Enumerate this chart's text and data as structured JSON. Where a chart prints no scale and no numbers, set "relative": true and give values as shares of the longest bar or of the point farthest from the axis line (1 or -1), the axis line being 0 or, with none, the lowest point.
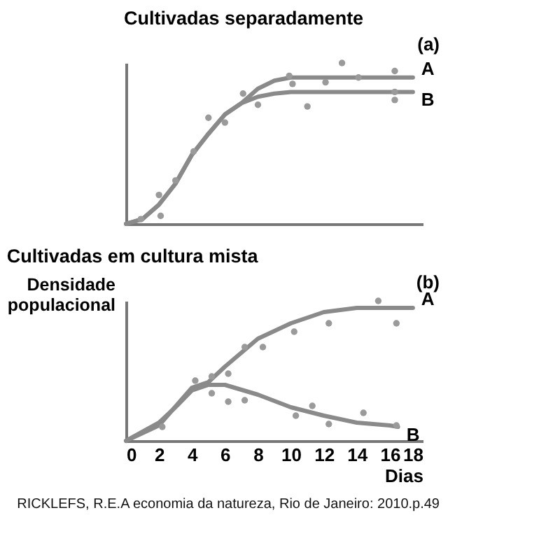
{
  "chart_data": [
    {
      "type": "line",
      "title": "Cultivadas separadamente",
      "annotations": [
        "(a)"
      ],
      "relative": true,
      "xlim": [
        0,
        18
      ],
      "tick_labels": false,
      "series": [
        {
          "name": "A",
          "color": "#8a8a8a",
          "x": [
            0,
            1,
            2,
            3,
            4,
            5,
            6,
            7,
            8,
            9,
            10,
            12,
            14,
            17.4
          ],
          "values": [
            0,
            0.03,
            0.12,
            0.25,
            0.43,
            0.56,
            0.68,
            0.75,
            0.84,
            0.89,
            0.91,
            0.91,
            0.91,
            0.91
          ]
        },
        {
          "name": "B",
          "color": "#8a8a8a",
          "x": [
            0,
            1,
            2,
            3,
            4,
            5,
            6,
            7,
            8,
            9,
            10,
            12,
            14,
            17.4
          ],
          "values": [
            0,
            0.03,
            0.12,
            0.25,
            0.43,
            0.56,
            0.68,
            0.75,
            0.79,
            0.81,
            0.82,
            0.82,
            0.82,
            0.82
          ]
        },
        {
          "type": "scatter",
          "marker": "circle",
          "color": "#9a9a9a",
          "x": [
            0.9,
            2,
            2.1,
            3,
            4.1,
            5,
            6,
            7.1,
            8,
            9.9,
            10.1,
            11,
            12.1,
            13.1,
            14.1,
            16.3,
            16.3,
            16.3
          ],
          "values": [
            0.03,
            0.18,
            0.05,
            0.27,
            0.45,
            0.66,
            0.63,
            0.81,
            0.74,
            0.92,
            0.87,
            0.73,
            0.88,
            1,
            0.91,
            0.82,
            0.95,
            0.77
          ]
        }
      ]
    },
    {
      "type": "line",
      "title": "Cultivadas em cultura mista",
      "ylabel": "Densidade populacional",
      "xlabel": "Dias",
      "annotations": [
        "(b)",
        "RICKLEFS, R.E.A economia da natureza, Rio de Janeiro: 2010.p.49"
      ],
      "relative": true,
      "xlim": [
        0,
        18
      ],
      "xticks": [
        0,
        2,
        4,
        6,
        8,
        10,
        12,
        14,
        16,
        18
      ],
      "tick_labels": "x",
      "series": [
        {
          "name": "A",
          "color": "#8a8a8a",
          "x": [
            0,
            2,
            4,
            5,
            6,
            8,
            10,
            12,
            14,
            17.4
          ],
          "values": [
            0,
            0.11,
            0.38,
            0.42,
            0.53,
            0.73,
            0.84,
            0.92,
            0.95,
            0.95
          ]
        },
        {
          "name": "B",
          "color": "#8a8a8a",
          "x": [
            0,
            2,
            3,
            4,
            5,
            6,
            8,
            10,
            12,
            14,
            16,
            16.5
          ],
          "values": [
            0,
            0.13,
            0.24,
            0.36,
            0.4,
            0.4,
            0.33,
            0.24,
            0.18,
            0.13,
            0.11,
            0.1
          ]
        },
        {
          "type": "scatter",
          "marker": "circle",
          "color": "#9a9a9a",
          "x": [
            2.2,
            4.2,
            5.2,
            5.2,
            6.2,
            6.2,
            7.2,
            7.2,
            8.3,
            10.2,
            10.3,
            11.3,
            12.3,
            12.3,
            14.4,
            15.3,
            16.4,
            16.4
          ],
          "values": [
            0.1,
            0.43,
            0.46,
            0.34,
            0.48,
            0.28,
            0.29,
            0.67,
            0.67,
            0.78,
            0.18,
            0.25,
            0.84,
            0.12,
            0.2,
            1,
            0.84,
            0.11
          ]
        }
      ]
    }
  ]
}
